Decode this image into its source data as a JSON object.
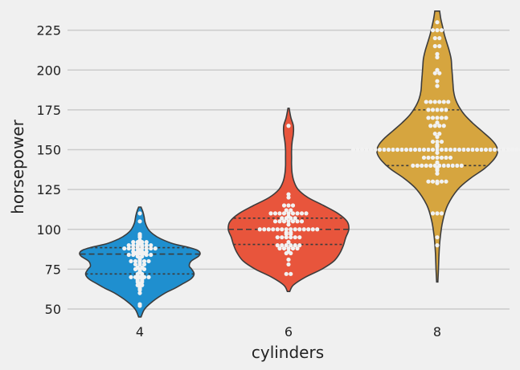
{
  "chart_data": {
    "type": "violin",
    "xlabel": "cylinders",
    "ylabel": "horsepower",
    "categories": [
      "4",
      "6",
      "8"
    ],
    "yticks": [
      50,
      75,
      100,
      125,
      150,
      175,
      200,
      225
    ],
    "ylim": [
      44,
      237
    ],
    "grid": true,
    "colors": {
      "background": "#f0f0f0",
      "grid": "#cbcbcb",
      "outline": "#3c3c3c",
      "point": "#f2f2f2",
      "violins": [
        "#1f8fcf",
        "#e8553c",
        "#d6a53f"
      ]
    },
    "violins": [
      {
        "category": "4",
        "quartiles": [
          72,
          84.5,
          88.5
        ],
        "density": [
          [
            45,
            0.02
          ],
          [
            50,
            0.08
          ],
          [
            55,
            0.22
          ],
          [
            60,
            0.42
          ],
          [
            63,
            0.58
          ],
          [
            66,
            0.72
          ],
          [
            69,
            0.85
          ],
          [
            72,
            0.9
          ],
          [
            75,
            0.86
          ],
          [
            77,
            0.82
          ],
          [
            80,
            0.85
          ],
          [
            83,
            0.97
          ],
          [
            85,
            1.0
          ],
          [
            87,
            0.95
          ],
          [
            89,
            0.78
          ],
          [
            91,
            0.55
          ],
          [
            94,
            0.35
          ],
          [
            97,
            0.22
          ],
          [
            100,
            0.14
          ],
          [
            104,
            0.09
          ],
          [
            108,
            0.07
          ],
          [
            111,
            0.05
          ],
          [
            114,
            0.02
          ]
        ],
        "points": [
          52,
          53,
          60,
          62,
          63,
          64,
          65,
          65,
          66,
          67,
          67,
          68,
          68,
          69,
          69,
          70,
          70,
          70,
          70,
          70,
          71,
          71,
          72,
          72,
          73,
          74,
          75,
          75,
          75,
          76,
          76,
          78,
          78,
          78,
          79,
          80,
          80,
          80,
          80,
          80,
          81,
          82,
          83,
          83,
          84,
          84,
          84,
          84,
          84,
          84,
          85,
          85,
          85,
          86,
          86,
          86,
          86,
          87,
          88,
          88,
          88,
          88,
          88,
          88,
          88,
          88,
          89,
          89,
          90,
          90,
          90,
          90,
          90,
          90,
          91,
          92,
          92,
          92,
          92,
          93,
          95,
          96,
          97,
          105,
          110
        ]
      },
      {
        "category": "6",
        "quartiles": [
          90.5,
          100,
          107
        ],
        "density": [
          [
            61,
            0.02
          ],
          [
            65,
            0.08
          ],
          [
            70,
            0.28
          ],
          [
            75,
            0.55
          ],
          [
            80,
            0.75
          ],
          [
            85,
            0.85
          ],
          [
            90,
            0.91
          ],
          [
            95,
            0.95
          ],
          [
            100,
            1.0
          ],
          [
            105,
            0.97
          ],
          [
            110,
            0.82
          ],
          [
            115,
            0.58
          ],
          [
            120,
            0.32
          ],
          [
            125,
            0.16
          ],
          [
            130,
            0.09
          ],
          [
            135,
            0.06
          ],
          [
            140,
            0.05
          ],
          [
            145,
            0.05
          ],
          [
            150,
            0.05
          ],
          [
            155,
            0.06
          ],
          [
            160,
            0.08
          ],
          [
            165,
            0.08
          ],
          [
            170,
            0.04
          ],
          [
            176,
            0.01
          ]
        ],
        "points": [
          72,
          72,
          78,
          81,
          85,
          85,
          86,
          88,
          88,
          88,
          88,
          88,
          90,
          90,
          90,
          90,
          90,
          90,
          92,
          95,
          95,
          95,
          95,
          95,
          95,
          97,
          97,
          98,
          98,
          100,
          100,
          100,
          100,
          100,
          100,
          100,
          100,
          100,
          100,
          100,
          100,
          100,
          100,
          103,
          105,
          105,
          105,
          105,
          105,
          105,
          105,
          107,
          107,
          107,
          107,
          108,
          110,
          110,
          110,
          110,
          110,
          110,
          110,
          110,
          110,
          112,
          112,
          115,
          115,
          115,
          120,
          122,
          165
        ]
      },
      {
        "category": "8",
        "quartiles": [
          140,
          150,
          175
        ],
        "density": [
          [
            67,
            0.01
          ],
          [
            75,
            0.02
          ],
          [
            85,
            0.03
          ],
          [
            95,
            0.05
          ],
          [
            105,
            0.09
          ],
          [
            115,
            0.17
          ],
          [
            125,
            0.34
          ],
          [
            132,
            0.55
          ],
          [
            138,
            0.78
          ],
          [
            143,
            0.92
          ],
          [
            147,
            0.99
          ],
          [
            150,
            1.0
          ],
          [
            153,
            0.97
          ],
          [
            157,
            0.88
          ],
          [
            162,
            0.73
          ],
          [
            167,
            0.58
          ],
          [
            172,
            0.45
          ],
          [
            177,
            0.36
          ],
          [
            182,
            0.3
          ],
          [
            187,
            0.27
          ],
          [
            192,
            0.26
          ],
          [
            197,
            0.25
          ],
          [
            202,
            0.24
          ],
          [
            207,
            0.23
          ],
          [
            212,
            0.2
          ],
          [
            217,
            0.16
          ],
          [
            222,
            0.12
          ],
          [
            227,
            0.09
          ],
          [
            232,
            0.06
          ],
          [
            237,
            0.04
          ]
        ],
        "points": [
          90,
          95,
          110,
          110,
          110,
          129,
          130,
          130,
          130,
          130,
          130,
          135,
          137,
          138,
          139,
          140,
          140,
          140,
          140,
          140,
          140,
          140,
          140,
          140,
          140,
          140,
          140,
          142,
          145,
          145,
          145,
          145,
          145,
          145,
          145,
          148,
          150,
          150,
          150,
          150,
          150,
          150,
          150,
          150,
          150,
          150,
          150,
          150,
          150,
          150,
          150,
          150,
          150,
          150,
          150,
          150,
          150,
          150,
          150,
          150,
          150,
          150,
          150,
          150,
          150,
          150,
          150,
          150,
          150,
          150,
          150,
          150,
          150,
          150,
          150,
          152,
          153,
          155,
          155,
          155,
          158,
          160,
          160,
          165,
          165,
          165,
          165,
          167,
          170,
          170,
          170,
          170,
          170,
          175,
          175,
          175,
          175,
          175,
          180,
          180,
          180,
          180,
          180,
          180,
          190,
          193,
          198,
          198,
          200,
          208,
          210,
          215,
          215,
          220,
          220,
          225,
          225,
          225,
          230
        ]
      }
    ]
  }
}
